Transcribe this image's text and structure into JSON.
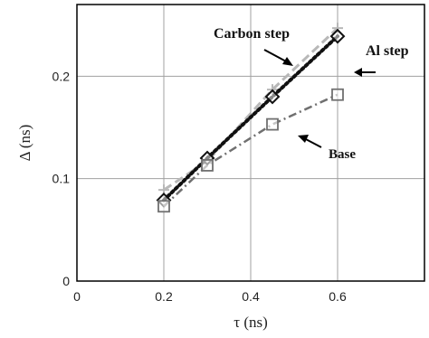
{
  "chart_data": {
    "type": "line",
    "title": "",
    "xlabel": "τ (ns)",
    "ylabel": "Δ (ns)",
    "xlim": [
      0,
      0.8
    ],
    "ylim": [
      0,
      0.27
    ],
    "x_ticks": [
      0,
      0.2,
      0.4,
      0.6
    ],
    "x_tick_labels": [
      "0",
      "0.2",
      "0.4",
      "0.6"
    ],
    "y_ticks": [
      0,
      0.1,
      0.2
    ],
    "y_tick_labels": [
      "0",
      "0.1",
      "0.2"
    ],
    "grid": true,
    "series": [
      {
        "name": "Carbon step",
        "color": "#b8b8b8",
        "dash": "dashed",
        "marker": "plus",
        "x": [
          0.2,
          0.3,
          0.45,
          0.6
        ],
        "y": [
          0.089,
          0.117,
          0.187,
          0.247
        ]
      },
      {
        "name": "Al step",
        "color": "#111111",
        "dash": "dotted",
        "marker": "diamond",
        "x": [
          0.2,
          0.3,
          0.45,
          0.6
        ],
        "y": [
          0.079,
          0.12,
          0.18,
          0.239
        ]
      },
      {
        "name": "Base",
        "color": "#707070",
        "dash": "dashdot",
        "marker": "square",
        "x": [
          0.2,
          0.3,
          0.45,
          0.6
        ],
        "y": [
          0.073,
          0.113,
          0.153,
          0.182
        ]
      }
    ],
    "annotations": [
      {
        "text": "Carbon step",
        "series": "Carbon step"
      },
      {
        "text": "Al step",
        "series": "Al step"
      },
      {
        "text": "Base",
        "series": "Base"
      }
    ]
  }
}
